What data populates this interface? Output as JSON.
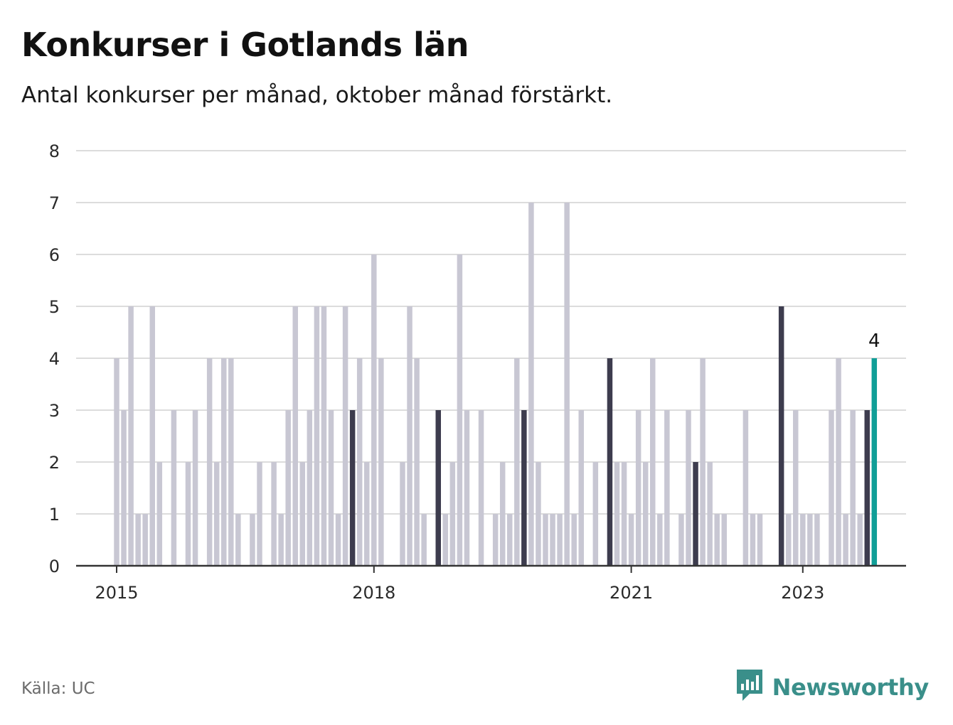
{
  "title": "Konkurser i Gotlands län",
  "subtitle": "Antal konkurser per månad, oktober månad förstärkt.",
  "source": "Källa: UC",
  "brand": {
    "name": "Newsworthy",
    "icon": "newsworthy-logo-icon",
    "color": "#3a8f8a"
  },
  "colors": {
    "bar": "#c8c7d3",
    "october": "#3d3c4e",
    "latest": "#109e97",
    "grid": "#dcdcdc",
    "axis": "#333333"
  },
  "chart_data": {
    "type": "bar",
    "title": "Konkurser i Gotlands län",
    "subtitle": "Antal konkurser per månad, oktober månad förstärkt.",
    "x_start": "2015-01",
    "ylim": [
      0,
      8
    ],
    "y_ticks": [
      "0",
      "1",
      "2",
      "3",
      "4",
      "5",
      "6",
      "7",
      "8"
    ],
    "x_ticks": [
      {
        "label": "2015",
        "month": "2015-01"
      },
      {
        "label": "2018",
        "month": "2018-01"
      },
      {
        "label": "2021",
        "month": "2021-01"
      },
      {
        "label": "2023",
        "month": "2023-01"
      }
    ],
    "grid": true,
    "values": [
      4,
      3,
      5,
      1,
      1,
      5,
      2,
      0,
      3,
      0,
      2,
      3,
      0,
      4,
      2,
      4,
      4,
      1,
      0,
      1,
      2,
      0,
      2,
      1,
      3,
      5,
      2,
      3,
      5,
      5,
      3,
      1,
      5,
      3,
      4,
      2,
      6,
      4,
      0,
      0,
      2,
      5,
      4,
      1,
      0,
      3,
      1,
      2,
      6,
      3,
      0,
      3,
      0,
      1,
      2,
      1,
      4,
      3,
      7,
      2,
      1,
      1,
      1,
      7,
      1,
      3,
      0,
      2,
      0,
      4,
      2,
      2,
      1,
      3,
      2,
      4,
      1,
      3,
      0,
      1,
      3,
      2,
      4,
      2,
      1,
      1,
      0,
      0,
      3,
      1,
      1,
      0,
      0,
      5,
      1,
      3,
      1,
      1,
      1,
      0,
      3,
      4,
      1,
      3,
      1,
      3,
      4
    ],
    "highlight_october": true,
    "last_value_label": "4"
  }
}
